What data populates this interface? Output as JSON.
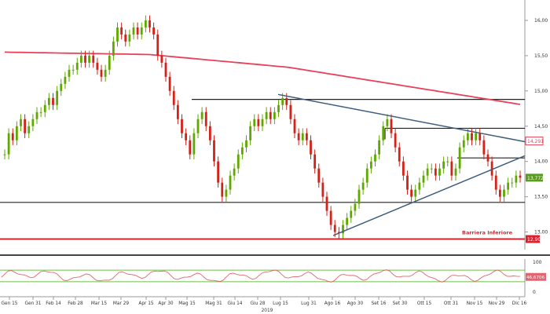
{
  "toolbar": {
    "buttons": [
      {
        "icon": "crosshair-icon",
        "glyph": "+"
      },
      {
        "icon": "draw-icon",
        "glyph": "/"
      },
      {
        "icon": "zoom-icon",
        "glyph": "z"
      }
    ],
    "panel_count": "0"
  },
  "colors": {
    "up": "#5fa800",
    "down": "#d32218",
    "ma": "#e8415a",
    "trend": "#3f5e7e",
    "level": "#222222",
    "support": "#d9232e",
    "current": "#5a9c1c",
    "rsi": "#e26470",
    "rsi_band": "#6fbf45"
  },
  "chart_data": {
    "type": "candlestick",
    "x_ticks": [
      "Gen 15",
      "Gen 31",
      "Feb 14",
      "Feb 28",
      "Mar 15",
      "Mar 29",
      "Apr 15",
      "Apr 30",
      "Mag 15",
      "Mag 31",
      "Giu 14",
      "Giu 28",
      "Lug 15",
      "Lug 31",
      "Ago 16",
      "Ago 30",
      "Set 16",
      "Set 30",
      "Ott 15",
      "Ott 31",
      "Nov 15",
      "Nov 29",
      "Dic 16"
    ],
    "year_label": "2019",
    "y_ticks": [
      "16,00",
      "15,50",
      "15,00",
      "14,50",
      "14,00",
      "13,50",
      "13,00"
    ],
    "ylim": [
      12.75,
      16.2
    ],
    "moving_average_labels": {
      "value": "14,291"
    },
    "last_price_label": "13,772",
    "support": {
      "value": 12.9,
      "label": "12,90",
      "annotation": "Barriera Inferiore"
    },
    "horizontal_levels": [
      14.88,
      14.47,
      14.05,
      13.42
    ],
    "rsi": {
      "ticks": [
        "100",
        "0"
      ],
      "value_label": "46,6706"
    },
    "closes": [
      14.1,
      14.4,
      14.3,
      14.5,
      14.6,
      14.4,
      14.5,
      14.6,
      14.7,
      14.7,
      14.8,
      14.9,
      14.8,
      15.0,
      15.1,
      15.2,
      15.3,
      15.3,
      15.4,
      15.5,
      15.4,
      15.5,
      15.4,
      15.3,
      15.2,
      15.3,
      15.5,
      15.7,
      15.9,
      15.8,
      15.7,
      15.8,
      15.9,
      15.8,
      15.9,
      16.0,
      15.9,
      15.8,
      15.5,
      15.4,
      15.2,
      15.0,
      14.8,
      14.6,
      14.4,
      14.3,
      14.1,
      14.4,
      14.6,
      14.7,
      14.5,
      14.3,
      14.0,
      13.7,
      13.5,
      13.6,
      13.8,
      13.9,
      14.1,
      14.2,
      14.3,
      14.5,
      14.6,
      14.5,
      14.6,
      14.7,
      14.6,
      14.7,
      14.8,
      14.9,
      14.8,
      14.6,
      14.4,
      14.3,
      14.4,
      14.3,
      14.1,
      13.9,
      13.7,
      13.5,
      13.3,
      13.1,
      13.0,
      12.98,
      13.1,
      13.2,
      13.3,
      13.4,
      13.6,
      13.7,
      13.9,
      14.0,
      14.1,
      14.3,
      14.5,
      14.6,
      14.4,
      14.2,
      14.0,
      13.8,
      13.6,
      13.5,
      13.6,
      13.7,
      13.8,
      13.9,
      13.9,
      13.8,
      13.9,
      14.0,
      14.0,
      13.8,
      13.9,
      14.2,
      14.3,
      14.4,
      14.3,
      14.4,
      14.3,
      14.1,
      14.0,
      13.8,
      13.6,
      13.5,
      13.6,
      13.7,
      13.7,
      13.8,
      13.77
    ]
  }
}
